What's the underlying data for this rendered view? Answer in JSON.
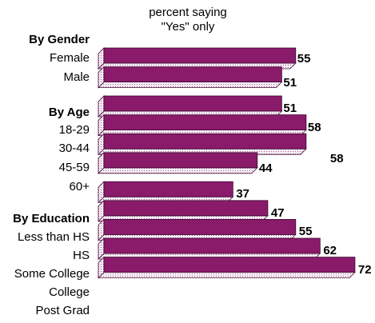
{
  "chart_data": {
    "type": "bar",
    "orientation": "horizontal",
    "subtitle_line1": "percent saying",
    "subtitle_line2": "\"Yes\" only",
    "bar_color": "#8a1a6a",
    "groups": [
      {
        "name": "By Gender",
        "categories": [
          "Female",
          "Male"
        ],
        "values": [
          55,
          51
        ],
        "value_labels": [
          "55",
          "51"
        ]
      },
      {
        "name": "By Age",
        "categories": [
          "18-29",
          "30-44",
          "45-59",
          "60+"
        ],
        "values": [
          51,
          58,
          58,
          44
        ],
        "value_labels": [
          "51",
          "58",
          "58",
          "44"
        ]
      },
      {
        "name": "By Education",
        "categories": [
          "Less than HS",
          "HS",
          "Some College",
          "College",
          "Post Grad"
        ],
        "values": [
          37,
          47,
          55,
          62,
          72
        ],
        "value_labels": [
          "37",
          "47",
          "55",
          "62",
          "72"
        ]
      }
    ]
  }
}
